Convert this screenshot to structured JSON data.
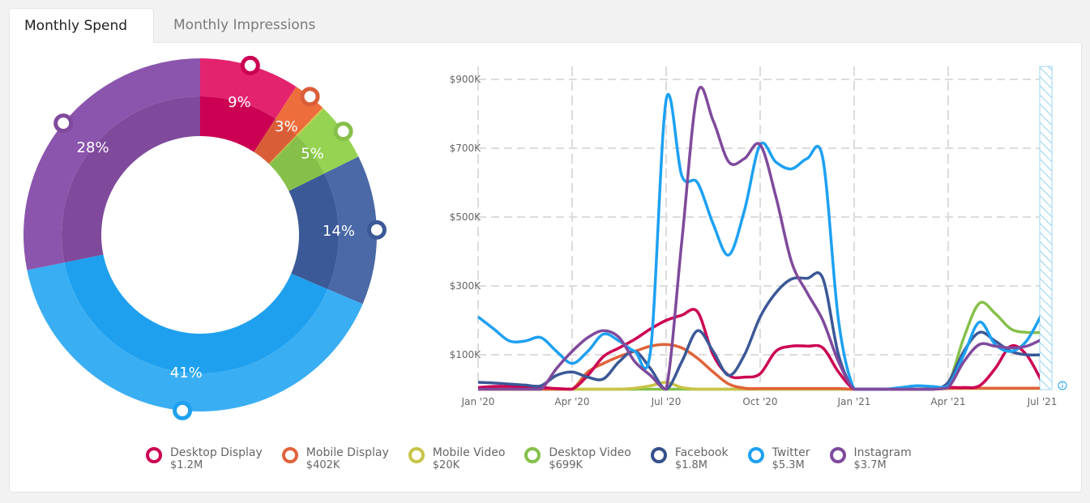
{
  "tabs": [
    {
      "label": "Monthly Spend",
      "active": true
    },
    {
      "label": "Monthly Impressions",
      "active": false
    }
  ],
  "chart_data": [
    {
      "type": "pie",
      "variant": "donut",
      "categories": [
        "Desktop Display",
        "Mobile Display",
        "Mobile Video",
        "Desktop Video",
        "Facebook",
        "Twitter",
        "Instagram"
      ],
      "values": [
        1.2,
        0.402,
        0.02,
        0.699,
        1.8,
        5.3,
        3.7
      ],
      "labels": [
        "9%",
        "3%",
        "",
        "5%",
        "14%",
        "41%",
        "28%"
      ],
      "colors_outer": [
        "#e4236f",
        "#ee6d3c",
        "#cfca4c",
        "#96d352",
        "#4a69a6",
        "#3aaef3",
        "#8b55ad"
      ],
      "colors_inner": [
        "#cc0052",
        "#d95e38",
        "#bdb840",
        "#86c04a",
        "#3b5897",
        "#1ea0ef",
        "#7f4a9c"
      ]
    },
    {
      "type": "line",
      "x": [
        "2020-01-01",
        "2020-01-16",
        "2020-02-01",
        "2020-02-16",
        "2020-03-01",
        "2020-03-16",
        "2020-04-01",
        "2020-04-16",
        "2020-05-01",
        "2020-05-16",
        "2020-06-01",
        "2020-06-16",
        "2020-07-01",
        "2020-07-16",
        "2020-08-01",
        "2020-08-16",
        "2020-09-01",
        "2020-09-16",
        "2020-10-01",
        "2020-10-16",
        "2020-11-01",
        "2020-11-16",
        "2020-12-01",
        "2020-12-16",
        "2021-01-01",
        "2021-01-16",
        "2021-02-01",
        "2021-02-16",
        "2021-03-01",
        "2021-03-16",
        "2021-04-01",
        "2021-04-16",
        "2021-05-01",
        "2021-05-16",
        "2021-06-01",
        "2021-06-16",
        "2021-07-01"
      ],
      "xticks": [
        "Jan '20",
        "Apr '20",
        "Jul '20",
        "Oct '20",
        "Jan '21",
        "Apr '21",
        "Jul '21"
      ],
      "yticks": [
        "$100K",
        "$300K",
        "$500K",
        "$700K",
        "$900K"
      ],
      "ytick_values": [
        100,
        300,
        500,
        700,
        900
      ],
      "ylim": [
        0,
        900
      ],
      "yunit": "$K",
      "grid": true,
      "series": [
        {
          "name": "Desktop Video",
          "color": "#86c04a",
          "values": [
            0,
            0,
            0,
            0,
            0,
            0,
            0,
            0,
            0,
            0,
            0,
            0,
            0,
            0,
            0,
            0,
            0,
            0,
            0,
            0,
            0,
            0,
            0,
            0,
            0,
            0,
            0,
            0,
            0,
            0,
            15,
            150,
            250,
            220,
            175,
            165,
            165
          ]
        },
        {
          "name": "Mobile Video",
          "color": "#c8c447",
          "values": [
            0,
            0,
            0,
            0,
            0,
            0,
            0,
            0,
            0,
            0,
            3,
            10,
            20,
            5,
            0,
            0,
            0,
            0,
            0,
            0,
            0,
            0,
            0,
            0,
            0,
            0,
            0,
            0,
            0,
            0,
            2,
            2,
            2,
            2,
            2,
            2,
            2
          ]
        },
        {
          "name": "Mobile Display",
          "color": "#e0633a",
          "values": [
            0,
            0,
            0,
            0,
            0,
            0,
            0,
            50,
            75,
            95,
            110,
            125,
            130,
            120,
            90,
            50,
            15,
            3,
            2,
            2,
            2,
            2,
            2,
            2,
            0,
            0,
            0,
            0,
            0,
            0,
            2,
            3,
            3,
            3,
            3,
            3,
            3
          ]
        },
        {
          "name": "Desktop Display",
          "color": "#cc0052",
          "values": [
            5,
            8,
            8,
            6,
            5,
            2,
            0,
            40,
            95,
            120,
            145,
            175,
            200,
            215,
            225,
            100,
            40,
            35,
            45,
            110,
            125,
            125,
            120,
            50,
            0,
            0,
            0,
            0,
            0,
            0,
            5,
            5,
            10,
            60,
            125,
            100,
            20
          ]
        },
        {
          "name": "Facebook",
          "color": "#3b5897",
          "values": [
            20,
            18,
            15,
            12,
            10,
            40,
            50,
            35,
            30,
            80,
            110,
            60,
            0,
            80,
            170,
            110,
            40,
            100,
            210,
            280,
            320,
            322,
            322,
            100,
            0,
            0,
            0,
            0,
            0,
            0,
            20,
            110,
            165,
            140,
            110,
            100,
            100
          ]
        },
        {
          "name": "Twitter",
          "color": "#1da1f2",
          "values": [
            210,
            175,
            140,
            140,
            150,
            110,
            75,
            110,
            160,
            140,
            110,
            110,
            840,
            620,
            600,
            480,
            390,
            520,
            710,
            660,
            640,
            670,
            670,
            200,
            0,
            0,
            0,
            5,
            10,
            8,
            10,
            100,
            195,
            130,
            110,
            140,
            220
          ]
        },
        {
          "name": "Instagram",
          "color": "#7f4a9c",
          "values": [
            0,
            0,
            0,
            0,
            0,
            60,
            110,
            150,
            170,
            150,
            80,
            40,
            0,
            430,
            860,
            780,
            660,
            670,
            710,
            560,
            370,
            280,
            200,
            80,
            0,
            0,
            0,
            0,
            0,
            0,
            5,
            80,
            130,
            125,
            120,
            125,
            145
          ]
        }
      ]
    }
  ],
  "legend": [
    {
      "name": "Desktop Display",
      "value": "$1.2M",
      "color": "#cc0052"
    },
    {
      "name": "Mobile Display",
      "value": "$402K",
      "color": "#e0633a"
    },
    {
      "name": "Mobile Video",
      "value": "$20K",
      "color": "#c8c447"
    },
    {
      "name": "Desktop Video",
      "value": "$699K",
      "color": "#86c04a"
    },
    {
      "name": "Facebook",
      "value": "$1.8M",
      "color": "#344f8c"
    },
    {
      "name": "Twitter",
      "value": "$5.3M",
      "color": "#1da1f2"
    },
    {
      "name": "Instagram",
      "value": "$3.7M",
      "color": "#7f4a9c"
    }
  ],
  "info_icon": "info-icon"
}
